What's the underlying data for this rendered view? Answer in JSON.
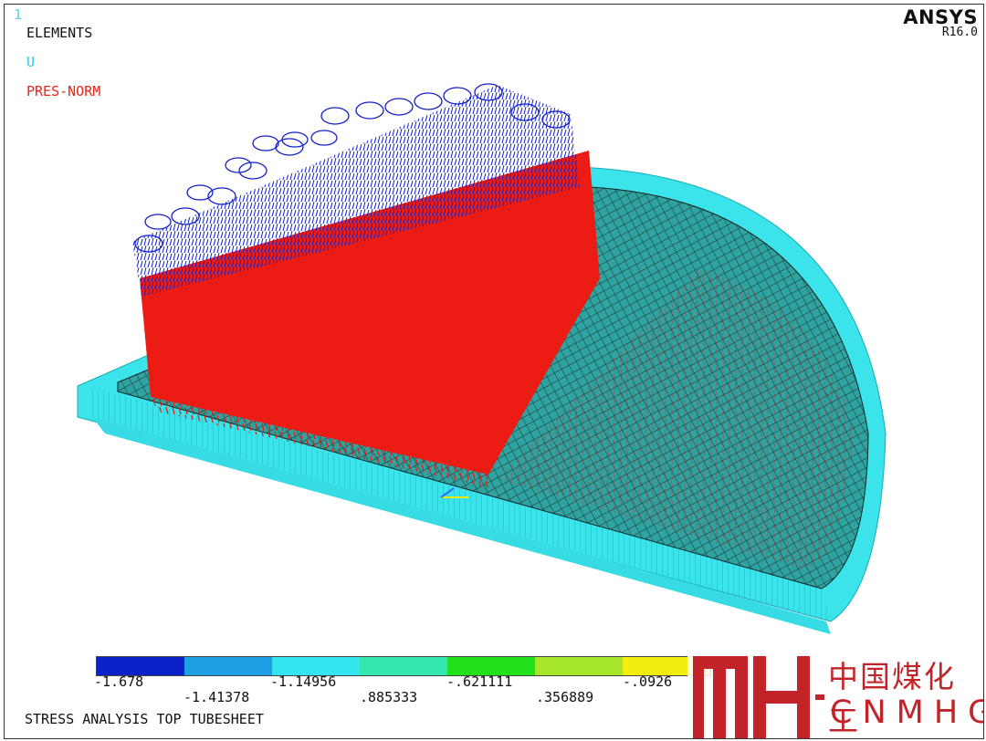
{
  "window": {
    "number": "1"
  },
  "brand": {
    "name": "ANSYS",
    "release": "R16.0"
  },
  "legend": [
    {
      "text": "ELEMENTS",
      "color": "#111111"
    },
    {
      "text": "U",
      "color": "#35c8e6"
    },
    {
      "text": "PRES-NORM",
      "color": "#e8251b"
    }
  ],
  "colorbar": {
    "colors": [
      "#0a22c8",
      "#1e9fe6",
      "#34e4ef",
      "#33e8b0",
      "#22e01a",
      "#a6e62a",
      "#f4ee10"
    ],
    "ticks_upper": [
      "-1.678",
      "-1.14956",
      "-.621111",
      "-.0926"
    ],
    "ticks_lower": [
      "-1.41378",
      ".885333",
      ".356889"
    ]
  },
  "caption": "STRESS ANALYSIS TOP TUBESHEET",
  "watermark": {
    "chinese": "中国煤化工",
    "latin": "CNMHG",
    "color": "#c3242a"
  }
}
